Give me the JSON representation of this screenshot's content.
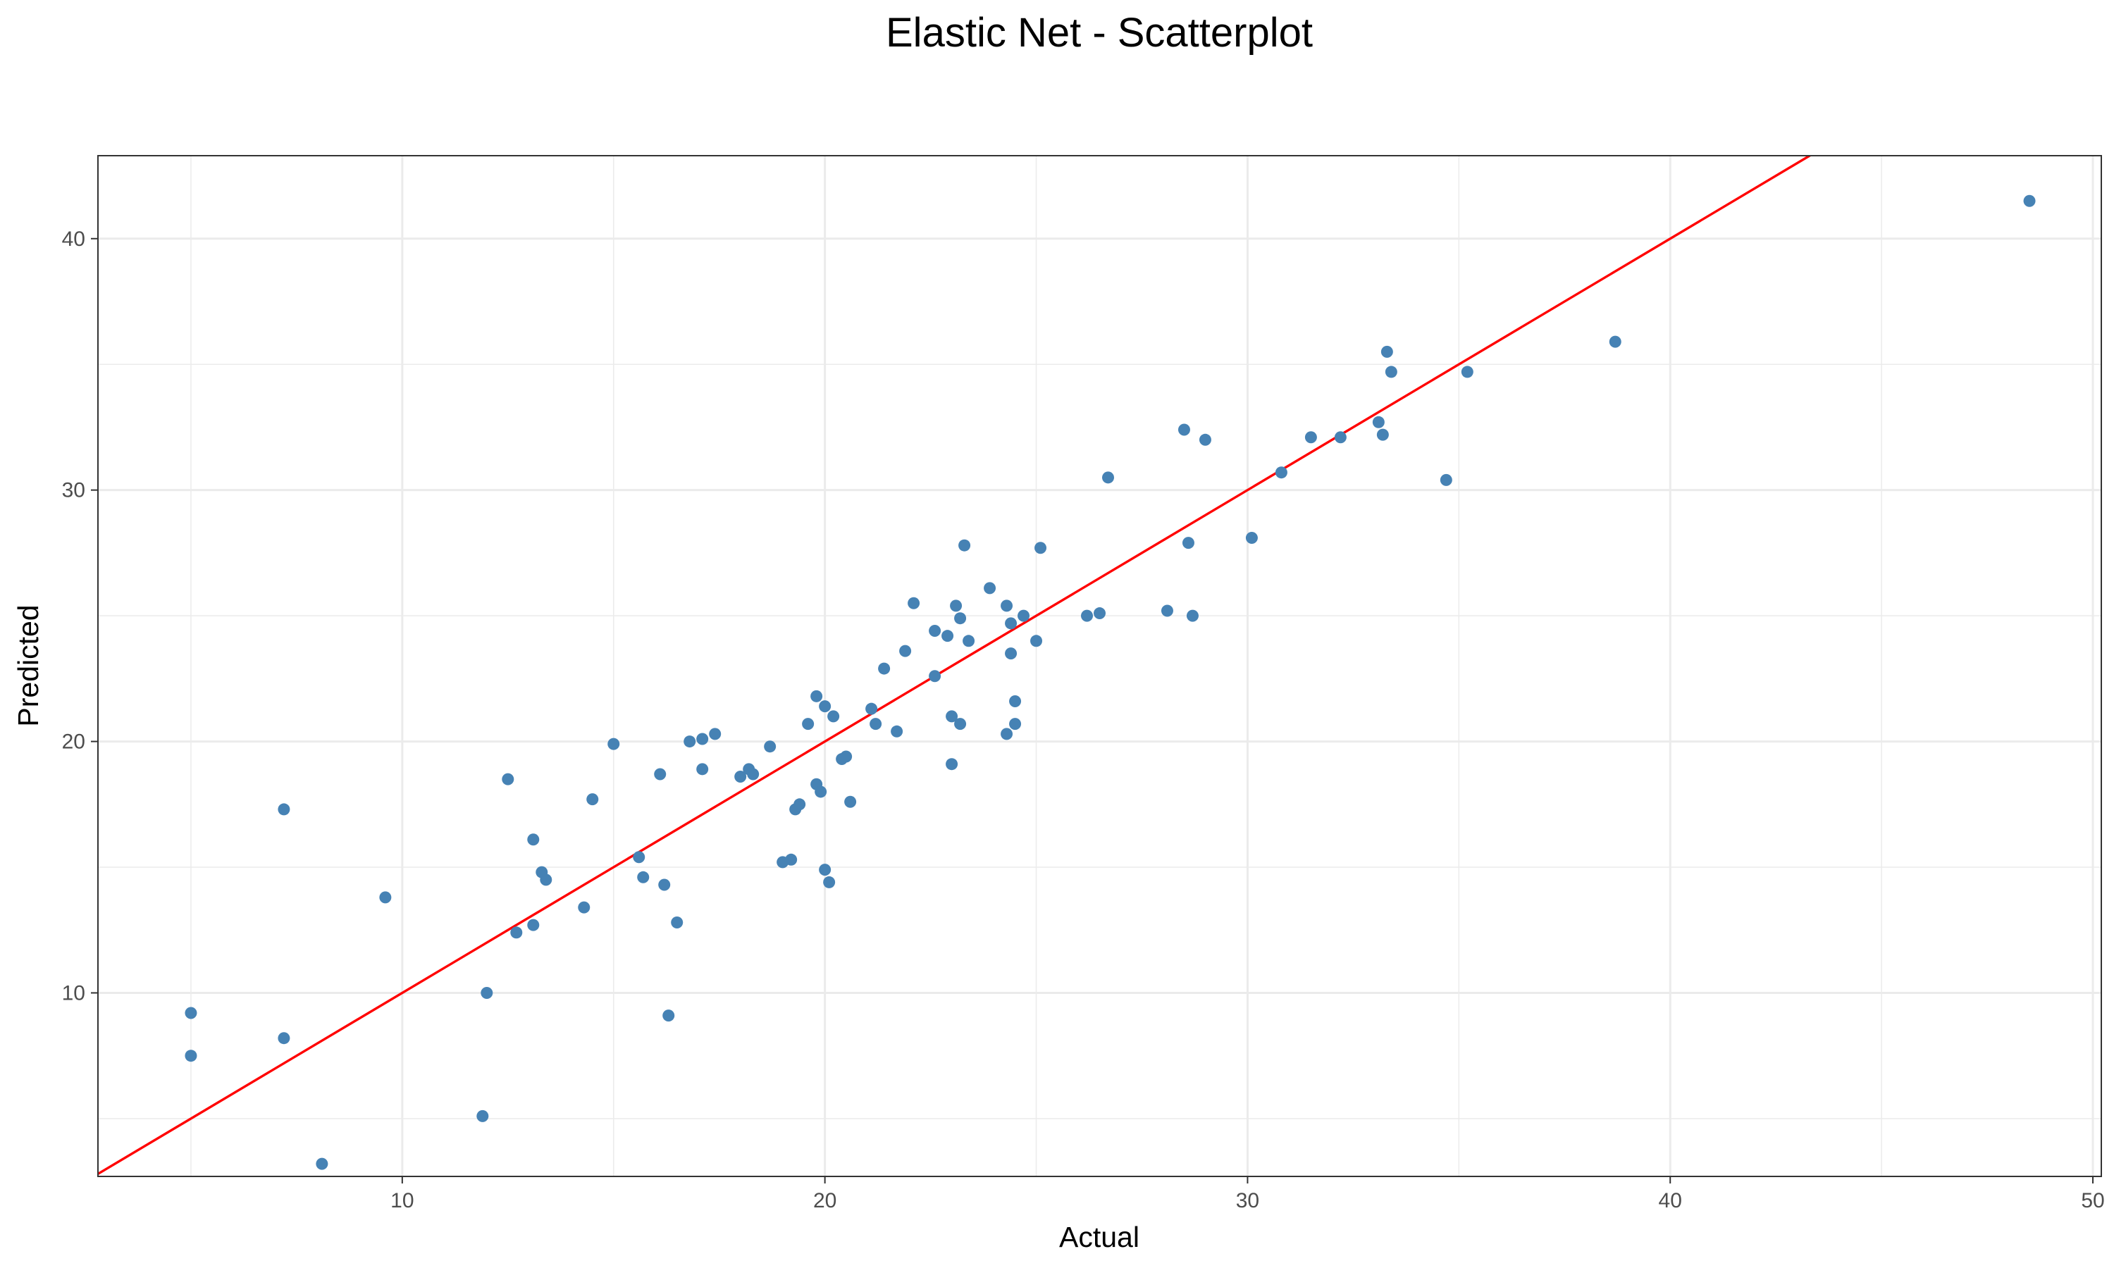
{
  "chart_data": {
    "type": "scatter",
    "title": "Elastic Net - Scatterplot",
    "xlabel": "Actual",
    "ylabel": "Predicted",
    "xlim": [
      2.8,
      50.2
    ],
    "ylim": [
      2.7,
      43.3
    ],
    "xticks": [
      10,
      20,
      30,
      40,
      50
    ],
    "yticks": [
      10,
      20,
      30,
      40
    ],
    "grid": true,
    "legend": "none",
    "point_color": "#4682B4",
    "line_color": "#FF0000",
    "reference_line": {
      "type": "identity",
      "slope": 1,
      "intercept": 0
    },
    "x": [
      5.0,
      5.0,
      7.2,
      7.2,
      8.1,
      9.6,
      11.9,
      12.0,
      12.5,
      12.7,
      13.1,
      13.1,
      13.3,
      13.4,
      14.3,
      14.5,
      15.0,
      15.6,
      15.7,
      16.1,
      16.2,
      16.3,
      16.5,
      16.8,
      17.1,
      17.1,
      17.4,
      18.0,
      18.2,
      18.3,
      18.7,
      19.0,
      19.2,
      19.3,
      19.4,
      19.6,
      19.8,
      19.8,
      19.9,
      20.0,
      20.0,
      20.1,
      20.2,
      20.4,
      20.5,
      20.6,
      21.1,
      21.2,
      21.4,
      21.7,
      21.9,
      22.1,
      22.6,
      22.6,
      22.9,
      23.0,
      23.0,
      23.1,
      23.2,
      23.2,
      23.3,
      23.4,
      23.9,
      24.3,
      24.3,
      24.4,
      24.4,
      24.5,
      24.5,
      24.7,
      25.0,
      25.1,
      26.2,
      26.5,
      26.7,
      28.1,
      28.5,
      28.6,
      28.7,
      29.0,
      30.1,
      30.8,
      31.5,
      32.2,
      33.1,
      33.2,
      33.3,
      33.4,
      34.7,
      35.2,
      38.7,
      48.5
    ],
    "y": [
      9.2,
      7.5,
      17.3,
      8.2,
      3.2,
      13.8,
      5.1,
      10.0,
      18.5,
      12.4,
      12.7,
      16.1,
      14.8,
      14.5,
      13.4,
      17.7,
      19.9,
      15.4,
      14.6,
      18.7,
      14.3,
      9.1,
      12.8,
      20.0,
      20.1,
      18.9,
      20.3,
      18.6,
      18.9,
      18.7,
      19.8,
      15.2,
      15.3,
      17.3,
      17.5,
      20.7,
      21.8,
      18.3,
      18.0,
      21.4,
      14.9,
      14.4,
      21.0,
      19.3,
      19.4,
      17.6,
      21.3,
      20.7,
      22.9,
      20.4,
      23.6,
      25.5,
      24.4,
      22.6,
      24.2,
      21.0,
      19.1,
      25.4,
      24.9,
      20.7,
      27.8,
      24.0,
      26.1,
      25.4,
      20.3,
      24.7,
      23.5,
      21.6,
      20.7,
      25.0,
      24.0,
      27.7,
      25.0,
      25.1,
      30.5,
      25.2,
      32.4,
      27.9,
      25.0,
      32.0,
      28.1,
      30.7,
      32.1,
      32.1,
      32.7,
      32.2,
      35.5,
      34.7,
      30.4,
      34.7,
      35.9,
      41.5
    ]
  }
}
